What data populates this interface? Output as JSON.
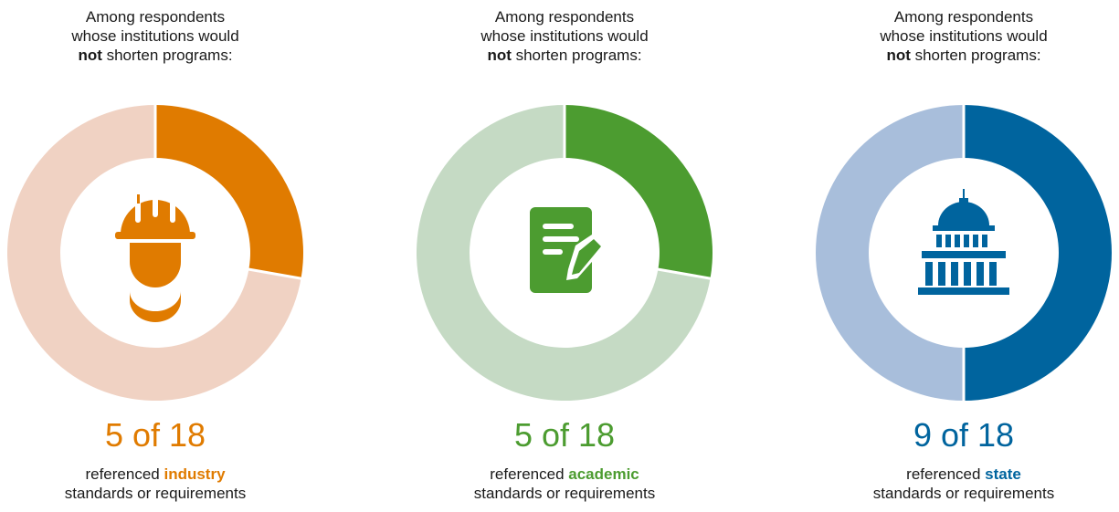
{
  "chart_data": [
    {
      "type": "pie",
      "heading": {
        "line1": "Among respondents",
        "line2": "whose institutions would",
        "bold": "not",
        "rest": " shorten programs:"
      },
      "value": 5,
      "total": 18,
      "big_text": "5 of 18",
      "caption": {
        "prefix": "referenced ",
        "keyword": "industry",
        "line2": "standards or requirements"
      },
      "colors": {
        "accent": "#E07B00",
        "track": "#F0D2C3",
        "icon": "#E07B00"
      },
      "icon": "hard-hat-worker-icon"
    },
    {
      "type": "pie",
      "heading": {
        "line1": "Among respondents",
        "line2": "whose institutions would",
        "bold": "not",
        "rest": " shorten programs:"
      },
      "value": 5,
      "total": 18,
      "big_text": "5 of 18",
      "caption": {
        "prefix": "referenced ",
        "keyword": "academic",
        "line2": "standards or requirements"
      },
      "colors": {
        "accent": "#4C9C30",
        "track": "#C5DAC4",
        "icon": "#4C9C30"
      },
      "icon": "document-pencil-icon"
    },
    {
      "type": "pie",
      "heading": {
        "line1": "Among respondents",
        "line2": "whose institutions would",
        "bold": "not",
        "rest": " shorten programs:"
      },
      "value": 9,
      "total": 18,
      "big_text": "9 of 18",
      "caption": {
        "prefix": "referenced ",
        "keyword": "state",
        "line2": "standards or requirements"
      },
      "colors": {
        "accent": "#00649E",
        "track": "#A8BEDB",
        "icon": "#00649E"
      },
      "icon": "capitol-building-icon"
    }
  ]
}
